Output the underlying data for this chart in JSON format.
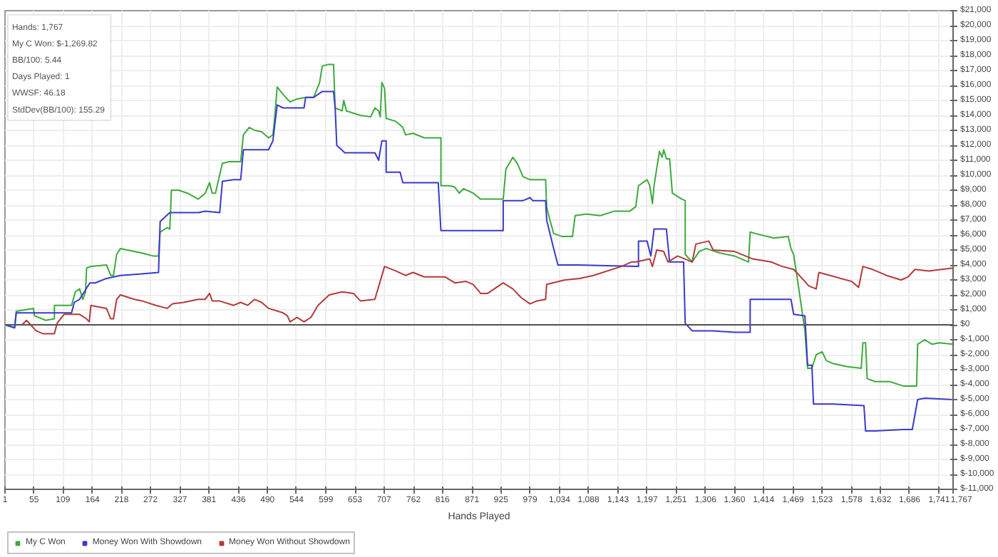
{
  "chart_data": {
    "type": "line",
    "xlabel": "Hands Played",
    "annotations": [
      "Hands: 1,767",
      "My C Won: $-1,269.82",
      "BB/100: 5.44",
      "Days Played: 1",
      "WWSF: 46.18",
      "StdDev(BB/100): 155.29"
    ],
    "series": [
      {
        "name": "My C Won",
        "color": "#3daa3d",
        "x": [
          1,
          19,
          22,
          54,
          56,
          77,
          93,
          93,
          125,
          132,
          140,
          146,
          151,
          153,
          161,
          190,
          198,
          203,
          209,
          216,
          256,
          277,
          287,
          290,
          303,
          308,
          311,
          324,
          341,
          361,
          374,
          382,
          387,
          393,
          406,
          419,
          440,
          445,
          456,
          466,
          479,
          492,
          500,
          503,
          508,
          519,
          532,
          545,
          561,
          576,
          587,
          592,
          602,
          613,
          616,
          629,
          632,
          637,
          663,
          682,
          690,
          697,
          700,
          703,
          708,
          711,
          729,
          742,
          747,
          761,
          782,
          813,
          813,
          829,
          839,
          847,
          855,
          873,
          887,
          900,
          929,
          934,
          947,
          955,
          966,
          979,
          1008,
          1010,
          1013,
          1023,
          1039,
          1058,
          1063,
          1084,
          1110,
          1136,
          1165,
          1176,
          1181,
          1197,
          1202,
          1207,
          1210,
          1220,
          1225,
          1228,
          1233,
          1239,
          1244,
          1262,
          1268,
          1268,
          1281,
          1294,
          1307,
          1333,
          1360,
          1386,
          1389,
          1399,
          1433,
          1460,
          1465,
          1470,
          1478,
          1491,
          1496,
          1504,
          1512,
          1523,
          1531,
          1544,
          1570,
          1596,
          1599,
          1604,
          1607,
          1622,
          1649,
          1675,
          1699,
          1701,
          1714,
          1728,
          1741,
          1767
        ],
        "values": [
          0,
          -200,
          900,
          1100,
          600,
          300,
          400,
          1300,
          1300,
          2200,
          2400,
          1700,
          2200,
          3800,
          3900,
          4000,
          3300,
          3300,
          4700,
          5100,
          4800,
          4600,
          4600,
          6200,
          6500,
          6400,
          9000,
          9000,
          8800,
          8400,
          8800,
          9500,
          8800,
          8800,
          10800,
          10900,
          10900,
          12700,
          13200,
          13000,
          12900,
          12500,
          12700,
          13700,
          15900,
          15400,
          14900,
          15100,
          15200,
          15200,
          16200,
          17300,
          17400,
          17400,
          14500,
          14300,
          15000,
          14300,
          14000,
          13900,
          14500,
          14300,
          13900,
          16200,
          15800,
          13800,
          13600,
          13200,
          12700,
          12800,
          12500,
          12500,
          9300,
          9300,
          9200,
          8800,
          9100,
          8800,
          8400,
          8400,
          8400,
          10400,
          11200,
          10800,
          9900,
          9700,
          9700,
          7900,
          7400,
          6100,
          5900,
          5900,
          7300,
          7400,
          7300,
          7600,
          7600,
          7900,
          9300,
          9700,
          9300,
          8100,
          9300,
          11600,
          11200,
          11700,
          11100,
          11100,
          8800,
          8400,
          8300,
          4700,
          4200,
          4900,
          5100,
          4800,
          4600,
          4200,
          6200,
          6100,
          5800,
          5900,
          5100,
          4700,
          2800,
          -400,
          -2900,
          -2900,
          -2000,
          -1800,
          -2400,
          -2600,
          -2800,
          -2900,
          -1200,
          -1200,
          -3600,
          -3800,
          -3800,
          -4100,
          -4100,
          -1300,
          -1000,
          -1300,
          -1200,
          -1300
        ]
      },
      {
        "name": "Money Won With Showdown",
        "color": "#3a3acc",
        "x": [
          1,
          19,
          22,
          93,
          125,
          130,
          140,
          159,
          169,
          190,
          216,
          256,
          287,
          290,
          308,
          334,
          347,
          361,
          374,
          401,
          406,
          427,
          440,
          445,
          492,
          500,
          508,
          519,
          558,
          561,
          576,
          592,
          613,
          616,
          619,
          634,
          690,
          697,
          703,
          711,
          711,
          737,
          742,
          808,
          813,
          887,
          900,
          929,
          929,
          966,
          979,
          984,
          1008,
          1010,
          1023,
          1031,
          1068,
          1176,
          1181,
          1181,
          1197,
          1204,
          1210,
          1233,
          1239,
          1265,
          1268,
          1281,
          1320,
          1360,
          1389,
          1389,
          1465,
          1470,
          1491,
          1496,
          1504,
          1507,
          1544,
          1601,
          1604,
          1622,
          1675,
          1691,
          1701,
          1714,
          1767
        ],
        "values": [
          0,
          -200,
          800,
          800,
          800,
          1500,
          1700,
          2800,
          2800,
          3100,
          3300,
          3400,
          3500,
          6900,
          7500,
          7500,
          7500,
          7500,
          7600,
          7500,
          9600,
          9700,
          9700,
          11700,
          11700,
          12300,
          14700,
          14500,
          14500,
          15200,
          15200,
          15600,
          15600,
          14500,
          12000,
          11500,
          11500,
          11000,
          12300,
          12300,
          10200,
          10200,
          9500,
          9500,
          6300,
          6300,
          6300,
          6300,
          8300,
          8300,
          8500,
          8300,
          8300,
          7000,
          5100,
          4000,
          4000,
          3900,
          3900,
          5600,
          5600,
          4600,
          6400,
          6400,
          4200,
          4200,
          100,
          -400,
          -400,
          -500,
          -500,
          1700,
          1700,
          700,
          600,
          -2700,
          -2700,
          -5300,
          -5300,
          -5400,
          -7100,
          -7100,
          -7000,
          -7000,
          -5000,
          -4900,
          -5000
        ]
      },
      {
        "name": "Money Won Without Showdown",
        "color": "#b33a3a",
        "x": [
          1,
          33,
          41,
          59,
          72,
          93,
          98,
          111,
          140,
          153,
          158,
          161,
          174,
          190,
          198,
          203,
          209,
          216,
          242,
          256,
          282,
          303,
          313,
          334,
          361,
          374,
          382,
          387,
          400,
          427,
          440,
          453,
          466,
          479,
          492,
          519,
          527,
          532,
          545,
          558,
          571,
          584,
          605,
          629,
          650,
          663,
          690,
          708,
          729,
          747,
          761,
          782,
          821,
          839,
          860,
          873,
          887,
          900,
          929,
          947,
          963,
          979,
          992,
          1008,
          1010,
          1044,
          1071,
          1097,
          1149,
          1168,
          1176,
          1202,
          1207,
          1215,
          1228,
          1236,
          1254,
          1281,
          1288,
          1312,
          1320,
          1360,
          1394,
          1428,
          1449,
          1470,
          1491,
          1498,
          1512,
          1517,
          1538,
          1578,
          1591,
          1599,
          1617,
          1643,
          1670,
          1683,
          1696,
          1722,
          1767
        ],
        "values": [
          0,
          0,
          300,
          -400,
          -600,
          -600,
          100,
          700,
          700,
          400,
          200,
          1300,
          1200,
          1100,
          400,
          400,
          1700,
          2000,
          1700,
          1600,
          1300,
          1100,
          1400,
          1500,
          1700,
          1700,
          2100,
          1600,
          1600,
          1300,
          1500,
          1300,
          1700,
          1500,
          1100,
          800,
          600,
          200,
          500,
          200,
          500,
          1300,
          2000,
          2200,
          2100,
          1600,
          1700,
          3900,
          3600,
          3300,
          3500,
          3200,
          3200,
          2800,
          2900,
          2700,
          2100,
          2100,
          2800,
          2400,
          1800,
          1400,
          1600,
          1700,
          2700,
          3000,
          3100,
          3300,
          3900,
          4200,
          4200,
          4400,
          3900,
          5000,
          4900,
          4200,
          4600,
          4200,
          5400,
          5600,
          5000,
          4900,
          4400,
          4200,
          3900,
          3700,
          2900,
          2600,
          2400,
          3500,
          3300,
          2900,
          2500,
          3900,
          3700,
          3300,
          3000,
          3200,
          3700,
          3600,
          3800
        ]
      }
    ],
    "xlim": [
      1,
      1767
    ],
    "xticks": [
      1,
      55,
      109,
      164,
      218,
      272,
      327,
      381,
      436,
      490,
      544,
      599,
      653,
      707,
      762,
      816,
      871,
      925,
      979,
      {
        "value": 1034,
        "label": "1,034"
      },
      {
        "value": 1088,
        "label": "1,088"
      },
      {
        "value": 1143,
        "label": "1,143"
      },
      {
        "value": 1197,
        "label": "1,197"
      },
      {
        "value": 1251,
        "label": "1,251"
      },
      {
        "value": 1306,
        "label": "1,306"
      },
      {
        "value": 1360,
        "label": "1,360"
      },
      {
        "value": 1414,
        "label": "1,414"
      },
      {
        "value": 1469,
        "label": "1,469"
      },
      {
        "value": 1523,
        "label": "1,523"
      },
      {
        "value": 1578,
        "label": "1,578"
      },
      {
        "value": 1632,
        "label": "1,632"
      },
      {
        "value": 1686,
        "label": "1,686"
      },
      {
        "value": 1741,
        "label": "1,741"
      },
      {
        "value": 1767,
        "label": "1,767"
      }
    ],
    "ylim": [
      -11000,
      21000
    ],
    "yticks": [
      {
        "value": -11000,
        "label": "$-11,000"
      },
      {
        "value": -10000,
        "label": "$-10,000"
      },
      {
        "value": -9000,
        "label": "$-9,000"
      },
      {
        "value": -8000,
        "label": "$-8,000"
      },
      {
        "value": -7000,
        "label": "$-7,000"
      },
      {
        "value": -6000,
        "label": "$-6,000"
      },
      {
        "value": -5000,
        "label": "$-5,000"
      },
      {
        "value": -4000,
        "label": "$-4,000"
      },
      {
        "value": -3000,
        "label": "$-3,000"
      },
      {
        "value": -2000,
        "label": "$-2,000"
      },
      {
        "value": -1000,
        "label": "$-1,000"
      },
      {
        "value": 0,
        "label": "$0"
      },
      {
        "value": 1000,
        "label": "$1,000"
      },
      {
        "value": 2000,
        "label": "$2,000"
      },
      {
        "value": 3000,
        "label": "$3,000"
      },
      {
        "value": 4000,
        "label": "$4,000"
      },
      {
        "value": 5000,
        "label": "$5,000"
      },
      {
        "value": 6000,
        "label": "$6,000"
      },
      {
        "value": 7000,
        "label": "$7,000"
      },
      {
        "value": 8000,
        "label": "$8,000"
      },
      {
        "value": 9000,
        "label": "$9,000"
      },
      {
        "value": 10000,
        "label": "$10,000"
      },
      {
        "value": 11000,
        "label": "$11,000"
      },
      {
        "value": 12000,
        "label": "$12,000"
      },
      {
        "value": 13000,
        "label": "$13,000"
      },
      {
        "value": 14000,
        "label": "$14,000"
      },
      {
        "value": 15000,
        "label": "$15,000"
      },
      {
        "value": 16000,
        "label": "$16,000"
      },
      {
        "value": 17000,
        "label": "$17,000"
      },
      {
        "value": 18000,
        "label": "$18,000"
      },
      {
        "value": 19000,
        "label": "$19,000"
      },
      {
        "value": 20000,
        "label": "$20,000"
      },
      {
        "value": 21000,
        "label": "$21,000"
      }
    ],
    "ref_lines": [
      {
        "axis": "y",
        "value": 0,
        "color": "#555555"
      }
    ],
    "grid": true,
    "legend": "bottom"
  }
}
